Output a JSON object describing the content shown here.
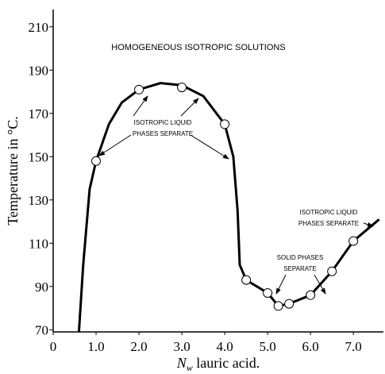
{
  "chart_data": {
    "type": "line",
    "ylabel": "Temperature in °C.",
    "xlabel": {
      "symbol": "N",
      "subscript": "w",
      "text": " lauric acid."
    },
    "xlim": [
      0,
      7.7
    ],
    "ylim": [
      69,
      218
    ],
    "xticks": [
      0,
      {
        "value": 1,
        "label": "1.0"
      },
      {
        "value": 2,
        "label": "2.0"
      },
      {
        "value": 3,
        "label": "3.0"
      },
      {
        "value": 4,
        "label": "4.0"
      },
      {
        "value": 5,
        "label": "5.0"
      },
      {
        "value": 6,
        "label": "6.0"
      },
      {
        "value": 7,
        "label": "7.0"
      }
    ],
    "yticks": [
      70,
      90,
      110,
      130,
      150,
      170,
      190,
      210
    ],
    "curve": {
      "color": "#000000",
      "x": [
        0.6,
        0.7,
        0.85,
        1.0,
        1.3,
        1.6,
        2.0,
        2.5,
        3.0,
        3.5,
        4.0,
        4.2,
        4.3,
        4.35,
        4.5,
        5.0,
        5.25,
        5.5,
        6.0,
        6.5,
        7.0,
        7.6
      ],
      "values": [
        69,
        100,
        135,
        148,
        165,
        175,
        181,
        184,
        183,
        178,
        165,
        150,
        125,
        100,
        93,
        87,
        81,
        82,
        86,
        97,
        111,
        121
      ]
    },
    "points": {
      "x": [
        1.0,
        2.0,
        3.0,
        4.0,
        4.5,
        5.0,
        5.25,
        5.5,
        6.0,
        6.5,
        7.0
      ],
      "values": [
        148,
        181,
        182,
        165,
        93,
        87,
        81,
        82,
        86,
        97,
        111
      ]
    },
    "annotations": [
      [
        "HOMOGENEOUS ISOTROPIC SOLUTIONS"
      ],
      [
        "ISOTROPIC LIQUID",
        "PHASES SEPARATE"
      ],
      [
        "SOLID PHASES",
        "SEPARATE"
      ],
      [
        "ISOTROPIC LIQUID",
        "PHASES SEPARATE"
      ]
    ]
  }
}
